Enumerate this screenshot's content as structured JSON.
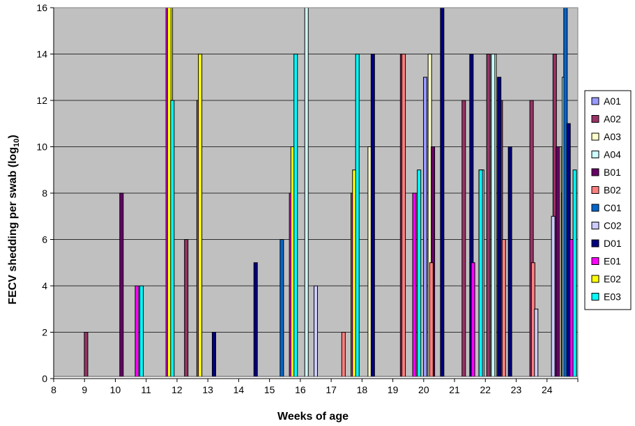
{
  "chart_data": {
    "type": "bar",
    "xlabel": "Weeks of age",
    "ylabel_main": "FECV shedding per swab (log",
    "ylabel_sub": "10",
    "ylabel_end": ")",
    "xlim": [
      8,
      25
    ],
    "ylim": [
      0,
      16
    ],
    "x_ticks": [
      "8",
      "9",
      "10",
      "11",
      "12",
      "13",
      "14",
      "15",
      "16",
      "17",
      "18",
      "19",
      "20",
      "21",
      "22",
      "23",
      "24"
    ],
    "y_ticks": [
      "0",
      "2",
      "4",
      "6",
      "8",
      "10",
      "12",
      "14",
      "16"
    ],
    "grid": "horizontal",
    "legend_position": "right",
    "plot_bg": "#c0c0c0",
    "series": [
      {
        "name": "A01",
        "color": "#9999ff",
        "points": [
          [
            20.05,
            13
          ],
          [
            24.55,
            10
          ]
        ]
      },
      {
        "name": "A02",
        "color": "#993366",
        "points": [
          [
            9.05,
            2
          ],
          [
            12.3,
            6
          ],
          [
            19.3,
            14
          ],
          [
            21.3,
            12
          ],
          [
            22.1,
            14
          ],
          [
            22.5,
            12
          ],
          [
            23.5,
            12
          ],
          [
            24.25,
            14
          ],
          [
            24.5,
            8
          ]
        ]
      },
      {
        "name": "A03",
        "color": "#ffffcc",
        "points": [
          [
            11.8,
            16
          ],
          [
            18.25,
            10
          ],
          [
            20.2,
            14
          ],
          [
            22.3,
            14
          ],
          [
            24.4,
            10
          ]
        ]
      },
      {
        "name": "A04",
        "color": "#ccffff",
        "points": [
          [
            16.2,
            16
          ],
          [
            22.25,
            14
          ],
          [
            24.55,
            13
          ]
        ]
      },
      {
        "name": "B01",
        "color": "#660066",
        "points": [
          [
            10.2,
            8
          ],
          [
            20.3,
            10
          ],
          [
            24.35,
            10
          ]
        ]
      },
      {
        "name": "B02",
        "color": "#ff8080",
        "points": [
          [
            17.4,
            2
          ],
          [
            19.35,
            14
          ],
          [
            20.25,
            5
          ],
          [
            22.6,
            6
          ],
          [
            23.55,
            5
          ]
        ]
      },
      {
        "name": "C01",
        "color": "#0066cc",
        "points": [
          [
            15.4,
            6
          ],
          [
            21.85,
            9
          ],
          [
            24.6,
            16
          ]
        ]
      },
      {
        "name": "C02",
        "color": "#ccccff",
        "points": [
          [
            16.5,
            4
          ],
          [
            21.9,
            9
          ],
          [
            23.65,
            3
          ],
          [
            24.2,
            7
          ]
        ]
      },
      {
        "name": "D01",
        "color": "#000080",
        "points": [
          [
            13.2,
            2
          ],
          [
            14.55,
            5
          ],
          [
            18.35,
            14
          ],
          [
            20.6,
            16
          ],
          [
            21.55,
            14
          ],
          [
            22.45,
            13
          ],
          [
            22.8,
            10
          ],
          [
            24.7,
            11
          ]
        ]
      },
      {
        "name": "E01",
        "color": "#ff00ff",
        "points": [
          [
            10.7,
            4
          ],
          [
            11.7,
            16
          ],
          [
            12.7,
            12
          ],
          [
            15.7,
            8
          ],
          [
            17.7,
            8
          ],
          [
            19.7,
            8
          ],
          [
            21.6,
            5
          ],
          [
            24.8,
            6
          ]
        ]
      },
      {
        "name": "E02",
        "color": "#ffff00",
        "points": [
          [
            11.75,
            16
          ],
          [
            12.75,
            14
          ],
          [
            15.75,
            10
          ],
          [
            17.75,
            9
          ]
        ]
      },
      {
        "name": "E03",
        "color": "#00ffff",
        "points": [
          [
            10.85,
            4
          ],
          [
            11.85,
            12
          ],
          [
            15.85,
            14
          ],
          [
            17.85,
            14
          ],
          [
            19.85,
            9
          ],
          [
            21.85,
            9
          ],
          [
            24.9,
            9
          ]
        ]
      }
    ]
  }
}
